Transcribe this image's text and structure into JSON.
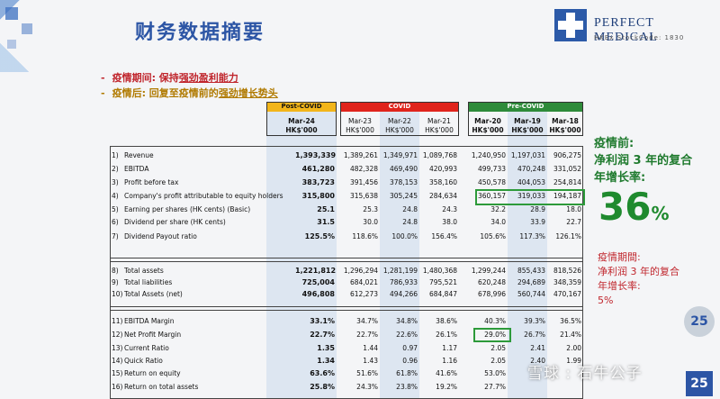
{
  "title": "财务数据摘要",
  "logo": {
    "name": "PERFECT MEDICAL",
    "code": "HKEx StockCode: 1830"
  },
  "bullets": [
    {
      "prefix": "疫情期间: 保持",
      "emph": "强劲盈利能力",
      "suffix": ""
    },
    {
      "prefix": "疫情后: 回复至疫情前的",
      "emph": "强劲增长势头",
      "suffix": ""
    }
  ],
  "groups": {
    "post": "Post-COVID",
    "covid": "COVID",
    "pre": "Pre-COVID"
  },
  "columns": [
    {
      "period": "Mar-24",
      "unit": "HK$'000"
    },
    {
      "period": "Mar-23",
      "unit": "HK$'000"
    },
    {
      "period": "Mar-22",
      "unit": "HK$'000"
    },
    {
      "period": "Mar-21",
      "unit": "HK$'000"
    },
    {
      "period": "Mar-20",
      "unit": "HK$'000"
    },
    {
      "period": "Mar-19",
      "unit": "HK$'000"
    },
    {
      "period": "Mar-18",
      "unit": "HK$'000"
    }
  ],
  "rows": [
    {
      "num": "1)",
      "label": "Revenue",
      "values": [
        "1,393,339",
        "1,389,261",
        "1,349,971",
        "1,089,768",
        "1,240,950",
        "1,197,031",
        "906,275"
      ]
    },
    {
      "num": "2)",
      "label": "EBITDA",
      "values": [
        "461,280",
        "482,328",
        "469,490",
        "420,993",
        "499,733",
        "470,248",
        "331,052"
      ]
    },
    {
      "num": "3)",
      "label": "Profit before tax",
      "values": [
        "383,723",
        "391,456",
        "378,153",
        "358,160",
        "450,578",
        "404,053",
        "254,814"
      ]
    },
    {
      "num": "4)",
      "label": "Company's profit attributable to equity holders",
      "values": [
        "315,800",
        "315,638",
        "305,245",
        "284,634",
        "360,157",
        "319,033",
        "194,187"
      ]
    },
    {
      "num": "5)",
      "label": "Earning per shares (HK cents) (Basic)",
      "values": [
        "25.1",
        "25.3",
        "24.8",
        "24.3",
        "32.2",
        "28.9",
        "18.0"
      ]
    },
    {
      "num": "6)",
      "label": "Dividend per share (HK cents)",
      "values": [
        "31.5",
        "30.0",
        "24.8",
        "38.0",
        "34.0",
        "33.9",
        "22.7"
      ]
    },
    {
      "num": "7)",
      "label": "Dividend Payout ratio",
      "values": [
        "125.5%",
        "118.6%",
        "100.0%",
        "156.4%",
        "105.6%",
        "117.3%",
        "126.1%"
      ]
    },
    {
      "num": "8)",
      "label": "Total assets",
      "values": [
        "1,221,812",
        "1,296,294",
        "1,281,199",
        "1,480,368",
        "1,299,244",
        "855,433",
        "818,526"
      ]
    },
    {
      "num": "9)",
      "label": "Total liabilities",
      "values": [
        "725,004",
        "684,021",
        "786,933",
        "795,521",
        "620,248",
        "294,689",
        "348,359"
      ]
    },
    {
      "num": "10)",
      "label": "Total Assets (net)",
      "values": [
        "496,808",
        "612,273",
        "494,266",
        "684,847",
        "678,996",
        "560,744",
        "470,167"
      ]
    },
    {
      "num": "11)",
      "label": "EBITDA Margin",
      "values": [
        "33.1%",
        "34.7%",
        "34.8%",
        "38.6%",
        "40.3%",
        "39.3%",
        "36.5%"
      ]
    },
    {
      "num": "12)",
      "label": "Net Profit Margin",
      "values": [
        "22.7%",
        "22.7%",
        "22.6%",
        "26.1%",
        "29.0%",
        "26.7%",
        "21.4%"
      ]
    },
    {
      "num": "13)",
      "label": "Current Ratio",
      "values": [
        "1.35",
        "1.44",
        "0.97",
        "1.17",
        "2.05",
        "2.41",
        "2.00"
      ]
    },
    {
      "num": "14)",
      "label": "Quick Ratio",
      "values": [
        "1.34",
        "1.43",
        "0.96",
        "1.16",
        "2.05",
        "2.40",
        "1.99"
      ]
    },
    {
      "num": "15)",
      "label": "Return on equity",
      "values": [
        "63.6%",
        "51.6%",
        "61.8%",
        "41.6%",
        "53.0%",
        "",
        ""
      ]
    },
    {
      "num": "16)",
      "label": "Return on total assets",
      "values": [
        "25.8%",
        "24.3%",
        "23.8%",
        "19.2%",
        "27.7%",
        "",
        ""
      ]
    }
  ],
  "side_top": {
    "line1": "疫情前:",
    "line2": "净利润 3 年的复合",
    "line3": "年增长率:",
    "big": "36",
    "pct": "%"
  },
  "side_bottom": {
    "line1": "疫情期間:",
    "line2": "净利润 3 年的复合",
    "line3": "年增长率:",
    "value": "5%"
  },
  "watermark": "雪球 : 石牛公子",
  "page_number": "25",
  "colors": {
    "title": "#2c55a5",
    "post": "#f2b51a",
    "covid": "#e0241c",
    "pre": "#2e8b3a",
    "highlight": "#2d9a3a",
    "shade": "#dde6f1"
  }
}
